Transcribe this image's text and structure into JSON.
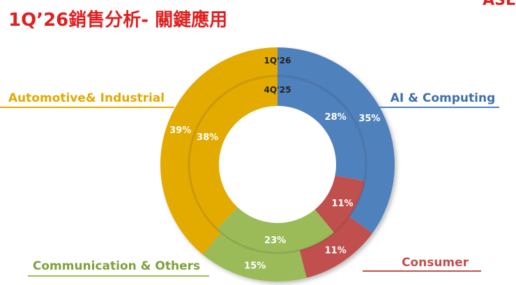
{
  "header": {
    "title": "1Q’26銷售分析- 關鍵應用",
    "logo_fragment": "ASE"
  },
  "chart_data": {
    "type": "pie",
    "style": "double-donut",
    "rings": [
      {
        "name": "1Q'26",
        "position": "outer"
      },
      {
        "name": "4Q'25",
        "position": "inner"
      }
    ],
    "categories": [
      "AI & Computing",
      "Consumer",
      "Communication & Others",
      "Automotive& Industrial"
    ],
    "series": [
      {
        "ring": "1Q'26",
        "values": [
          35,
          11,
          15,
          39
        ],
        "labels": [
          "35%",
          "11%",
          "15%",
          "39%"
        ]
      },
      {
        "ring": "4Q'25",
        "values": [
          28,
          11,
          23,
          38
        ],
        "labels": [
          "28%",
          "11%",
          "23%",
          "38%"
        ]
      }
    ],
    "colors": [
      "#4f81bd",
      "#c0504d",
      "#9bbb59",
      "#e3aa00"
    ],
    "legend_placement": "around-chart"
  }
}
